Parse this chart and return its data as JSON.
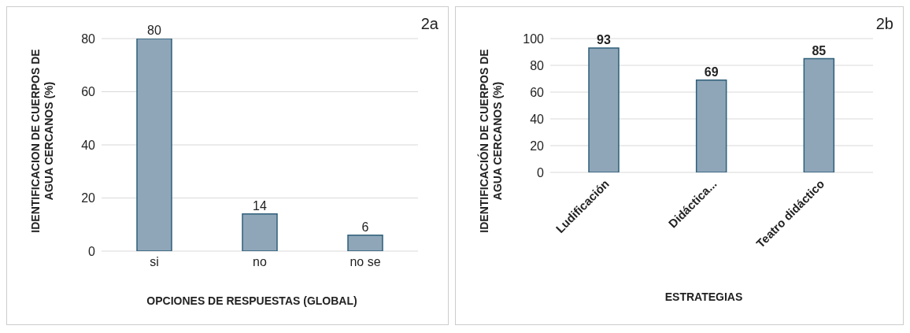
{
  "chart_data": [
    {
      "type": "bar",
      "categories": [
        "si",
        "no",
        "no se"
      ],
      "values": [
        80,
        14,
        6
      ],
      "color": "#8fa6b9",
      "ylim": [
        0,
        80
      ],
      "yticks": [
        0,
        20,
        40,
        60,
        80
      ],
      "grid": "y",
      "data_labels": true,
      "xlabel": "OPCIONES DE RESPUESTAS (GLOBAL)",
      "ylabel": "IDENTIFICACION DE CUERPOS DE AGUA CERCANOS (%)",
      "annotations": [
        "2a"
      ]
    },
    {
      "type": "bar",
      "categories": [
        "Ludificación",
        "Didáctica...",
        "Teatro didáctico"
      ],
      "values": [
        93,
        69,
        85
      ],
      "color": "#8fa6b9",
      "ylim": [
        0,
        100
      ],
      "yticks": [
        0,
        20,
        40,
        60,
        80,
        100
      ],
      "grid": "y",
      "data_labels": true,
      "xlabel": "ESTRATEGIAS",
      "ylabel": "IDENTIFICACIÓN DE CUERPOS DE AGUA CERCANOS (%)",
      "annotations": [
        "2b"
      ]
    }
  ]
}
